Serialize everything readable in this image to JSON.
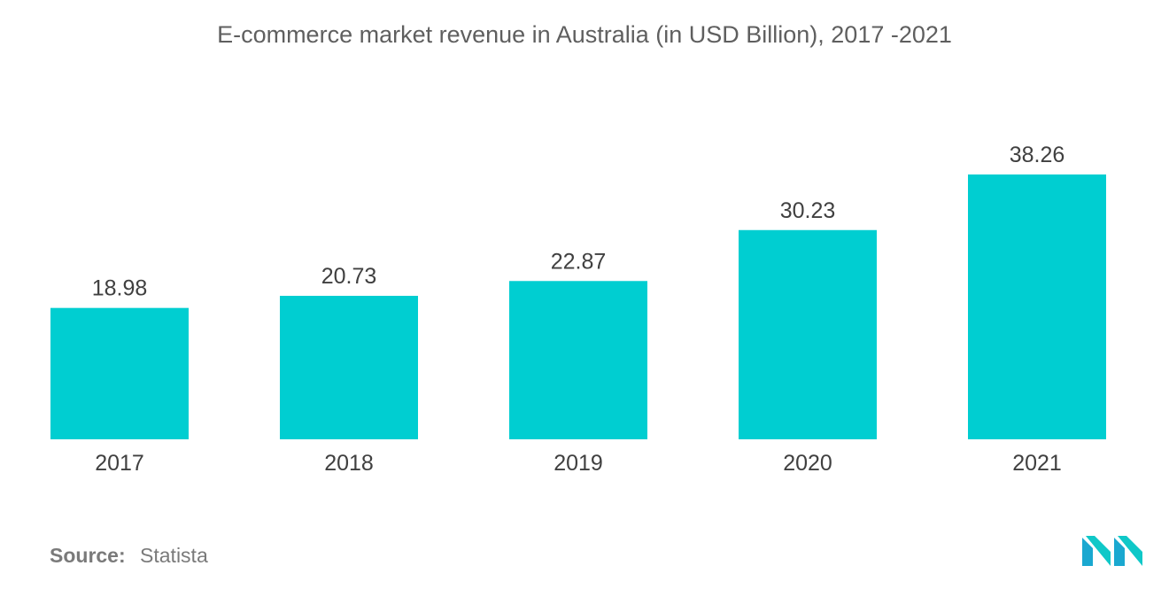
{
  "chart_data": {
    "type": "bar",
    "title": "E-commerce market revenue in Australia (in USD Billion), 2017 -2021",
    "categories": [
      "2017",
      "2018",
      "2019",
      "2020",
      "2021"
    ],
    "values": [
      18.98,
      20.73,
      22.87,
      30.23,
      38.26
    ],
    "value_labels": [
      "18.98",
      "20.73",
      "22.87",
      "30.23",
      "38.26"
    ],
    "xlabel": "",
    "ylabel": "",
    "ylim": [
      0,
      38.26
    ],
    "grid": false,
    "legend": "none",
    "bar_color": "#00ced1"
  },
  "source": {
    "label": "Source:",
    "value": "Statista"
  },
  "logo": {
    "icon": "mordor-intelligence-logo",
    "colors": [
      "#1aa8d0",
      "#0fc8c8"
    ]
  }
}
